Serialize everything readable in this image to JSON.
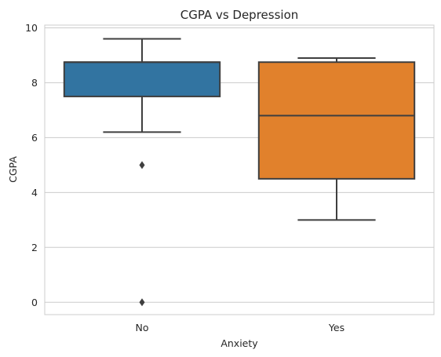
{
  "chart_data": {
    "type": "box",
    "title": "CGPA vs Depression",
    "xlabel": "Anxiety",
    "ylabel": "CGPA",
    "ylim": [
      -0.45,
      10.1
    ],
    "yticks": [
      0,
      2,
      4,
      6,
      8,
      10
    ],
    "grid": true,
    "categories": [
      "No",
      "Yes"
    ],
    "colors": [
      "#3274a1",
      "#e1812c"
    ],
    "boxes": [
      {
        "category": "No",
        "whisker_low": 6.2,
        "q1": 7.5,
        "median": 8.75,
        "q3": 8.75,
        "whisker_high": 9.6,
        "fliers": [
          5.0,
          0.0
        ]
      },
      {
        "category": "Yes",
        "whisker_low": 3.0,
        "q1": 4.5,
        "median": 6.8,
        "q3": 8.75,
        "whisker_high": 8.9,
        "fliers": []
      }
    ]
  }
}
